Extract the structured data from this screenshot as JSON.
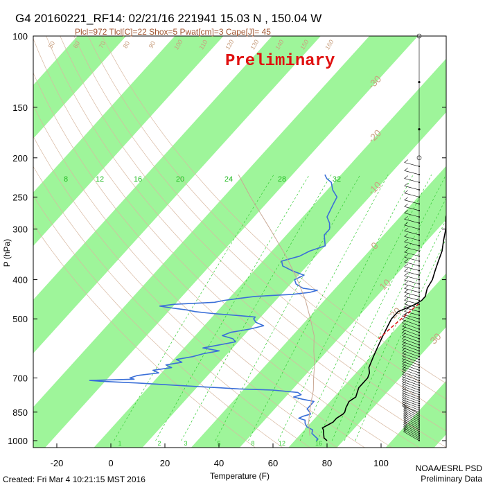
{
  "chart_data": {
    "type": "line",
    "subtype": "skew-t log-p sounding diagram",
    "title": "G4 20160221_RF14: 02/21/16 221941   15.03 N , 150.04 W",
    "subtitle": "Plcl=972 Tlcl[C]=22 Shox=5 Pwat[cm]=3 Cape[J]= 45",
    "xlabel": "Temperature (F)",
    "ylabel": "P (hPa)",
    "x_scale": "skewed linear",
    "y_scale": "log",
    "xlim": [
      -28,
      105
    ],
    "ylim": [
      1050,
      100
    ],
    "x_ticks": [
      "-20",
      "0",
      "20",
      "40",
      "60",
      "80",
      "100"
    ],
    "y_ticks": [
      "100",
      "150",
      "200",
      "250",
      "300",
      "400",
      "500",
      "700",
      "850",
      "1000"
    ],
    "isotherm_band_labels_C": [
      "-30",
      "-20",
      "-10",
      "0",
      "10",
      "20",
      "30"
    ],
    "mixing_ratio_labels": [
      "8",
      "12",
      "16",
      "20",
      "24",
      "28",
      "32"
    ],
    "mixing_ratio_labels_bottom": [
      "1",
      "2",
      "3",
      "5",
      "8",
      "12",
      "16"
    ],
    "theta_labels": [
      "50",
      "60",
      "70",
      "80",
      "90",
      "100",
      "110",
      "120",
      "130",
      "140",
      "150",
      "160"
    ],
    "preliminary_stamp": "Preliminary",
    "series": [
      {
        "name": "Temperature",
        "color": "#000000",
        "points": [
          [
            1000,
            80
          ],
          [
            985,
            78
          ],
          [
            970,
            77
          ],
          [
            955,
            76
          ],
          [
            940,
            75
          ],
          [
            930,
            74
          ],
          [
            915,
            75
          ],
          [
            900,
            76
          ],
          [
            880,
            76
          ],
          [
            860,
            77
          ],
          [
            850,
            77
          ],
          [
            830,
            76
          ],
          [
            800,
            75
          ],
          [
            780,
            76
          ],
          [
            760,
            75
          ],
          [
            740,
            74
          ],
          [
            720,
            74
          ],
          [
            700,
            74
          ],
          [
            680,
            73
          ],
          [
            660,
            71
          ],
          [
            640,
            70
          ],
          [
            620,
            69
          ],
          [
            600,
            68
          ],
          [
            580,
            67
          ],
          [
            560,
            66
          ],
          [
            540,
            65
          ],
          [
            520,
            64
          ],
          [
            500,
            63
          ],
          [
            490,
            63
          ],
          [
            480,
            63
          ],
          [
            470,
            65
          ],
          [
            460,
            67
          ],
          [
            450,
            68
          ],
          [
            440,
            68
          ],
          [
            430,
            67
          ],
          [
            420,
            66
          ],
          [
            400,
            65
          ],
          [
            380,
            63
          ],
          [
            360,
            61
          ],
          [
            340,
            59
          ],
          [
            320,
            56
          ],
          [
            300,
            53
          ],
          [
            280,
            49
          ],
          [
            260,
            46
          ],
          [
            250,
            44
          ],
          [
            240,
            42
          ],
          [
            230,
            39
          ],
          [
            220,
            36
          ],
          [
            210,
            34
          ],
          [
            200,
            32
          ]
        ]
      },
      {
        "name": "Dewpoint",
        "color": "#3a6fd8",
        "points": [
          [
            1000,
            76
          ],
          [
            990,
            76
          ],
          [
            975,
            74
          ],
          [
            960,
            72
          ],
          [
            940,
            71
          ],
          [
            925,
            68
          ],
          [
            905,
            66
          ],
          [
            890,
            65
          ],
          [
            880,
            62
          ],
          [
            870,
            63
          ],
          [
            860,
            65
          ],
          [
            850,
            64
          ],
          [
            835,
            62
          ],
          [
            820,
            62
          ],
          [
            800,
            62
          ],
          [
            790,
            57
          ],
          [
            780,
            53
          ],
          [
            770,
            55
          ],
          [
            760,
            53
          ],
          [
            750,
            43
          ],
          [
            745,
            30
          ],
          [
            740,
            22
          ],
          [
            735,
            14
          ],
          [
            730,
            6
          ],
          [
            725,
            -2
          ],
          [
            720,
            -10
          ],
          [
            716,
            -18
          ],
          [
            713,
            -24
          ],
          [
            710,
            -28
          ],
          [
            705,
            -12
          ],
          [
            700,
            -14
          ],
          [
            690,
            -12
          ],
          [
            680,
            -5
          ],
          [
            670,
            -8
          ],
          [
            660,
            -2
          ],
          [
            650,
            -5
          ],
          [
            640,
            0
          ],
          [
            630,
            -3
          ],
          [
            620,
            2
          ],
          [
            610,
            5
          ],
          [
            600,
            10
          ],
          [
            590,
            3
          ],
          [
            580,
            8
          ],
          [
            570,
            13
          ],
          [
            560,
            11
          ],
          [
            550,
            6
          ],
          [
            540,
            8
          ],
          [
            530,
            14
          ],
          [
            520,
            18
          ],
          [
            510,
            14
          ],
          [
            500,
            12
          ],
          [
            495,
            12
          ],
          [
            490,
            4
          ],
          [
            485,
            -5
          ],
          [
            480,
            -12
          ],
          [
            475,
            -16
          ],
          [
            470,
            -22
          ],
          [
            465,
            -27
          ],
          [
            460,
            -22
          ],
          [
            455,
            -8
          ],
          [
            450,
            -5
          ],
          [
            445,
            0
          ],
          [
            440,
            5
          ],
          [
            435,
            18
          ],
          [
            430,
            24
          ],
          [
            425,
            26
          ],
          [
            420,
            20
          ],
          [
            410,
            16
          ],
          [
            400,
            14
          ],
          [
            390,
            16
          ],
          [
            380,
            10
          ],
          [
            370,
            5
          ],
          [
            360,
            3
          ],
          [
            350,
            8
          ],
          [
            340,
            10
          ],
          [
            330,
            14
          ],
          [
            320,
            12
          ],
          [
            310,
            10
          ],
          [
            300,
            10
          ],
          [
            290,
            8
          ],
          [
            280,
            5
          ],
          [
            270,
            4
          ],
          [
            260,
            3
          ],
          [
            250,
            2
          ],
          [
            240,
            -2
          ],
          [
            230,
            -5
          ],
          [
            225,
            -8
          ],
          [
            220,
            -10
          ]
        ]
      },
      {
        "name": "Parcel",
        "color": "#c9a894",
        "points": [
          [
            972,
            72
          ],
          [
            900,
            67
          ],
          [
            850,
            64
          ],
          [
            800,
            61
          ],
          [
            750,
            58
          ],
          [
            700,
            54
          ],
          [
            650,
            50
          ],
          [
            600,
            45
          ],
          [
            550,
            40
          ],
          [
            500,
            33
          ],
          [
            450,
            25
          ],
          [
            400,
            15
          ],
          [
            350,
            3
          ],
          [
            300,
            -12
          ],
          [
            250,
            -30
          ],
          [
            220,
            -42
          ]
        ]
      },
      {
        "name": "Lifted segment",
        "color": "#e02020",
        "points": [
          [
            560,
            65
          ],
          [
            520,
            66
          ],
          [
            490,
            67
          ],
          [
            460,
            68
          ]
        ]
      }
    ],
    "wind_barbs": {
      "levels_hPa": [
        1000,
        990,
        980,
        970,
        960,
        950,
        940,
        930,
        920,
        910,
        900,
        890,
        880,
        870,
        860,
        850,
        840,
        830,
        820,
        810,
        800,
        790,
        780,
        770,
        760,
        750,
        740,
        730,
        720,
        710,
        700,
        690,
        680,
        670,
        660,
        650,
        640,
        630,
        620,
        610,
        600,
        590,
        580,
        570,
        560,
        550,
        540,
        530,
        520,
        510,
        500,
        490,
        480,
        470,
        460,
        450,
        440,
        430,
        420,
        410,
        400,
        390,
        380,
        370,
        360,
        350,
        340,
        330,
        320,
        310,
        300,
        290,
        280,
        270,
        260,
        250,
        240,
        230,
        220,
        210,
        200,
        185,
        170,
        150,
        130,
        110,
        100
      ]
    },
    "legend_placement": "none",
    "footer_left": "Created: Fri Mar  4 10:21:15 MST 2016",
    "footer_right_1": "NOAA/ESRL PSD",
    "footer_right_2": "Preliminary Data"
  }
}
